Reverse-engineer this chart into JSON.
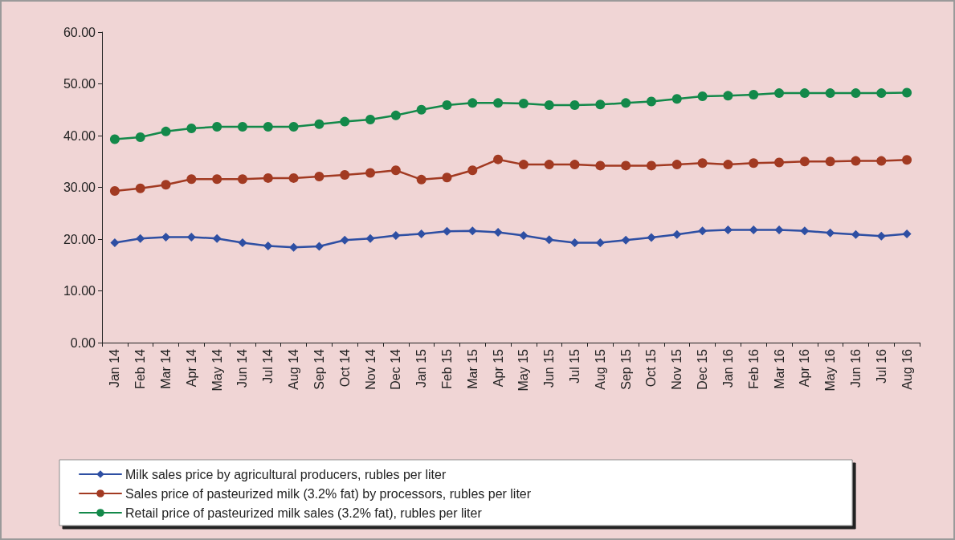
{
  "chart_data": {
    "type": "line",
    "categories": [
      "Jan 14",
      "Feb 14",
      "Mar 14",
      "Apr 14",
      "May 14",
      "Jun 14",
      "Jul 14",
      "Aug 14",
      "Sep 14",
      "Oct 14",
      "Nov 14",
      "Dec 14",
      "Jan 15",
      "Feb 15",
      "Mar 15",
      "Apr 15",
      "May 15",
      "Jun 15",
      "Jul 15",
      "Aug 15",
      "Sep 15",
      "Oct 15",
      "Nov 15",
      "Dec 15",
      "Jan 16",
      "Feb 16",
      "Mar 16",
      "Apr 16",
      "May 16",
      "Jun 16",
      "Jul 16",
      "Aug 16"
    ],
    "ylim": [
      0,
      60
    ],
    "yticks": [
      {
        "value": 0,
        "label": "0.00"
      },
      {
        "value": 10,
        "label": "10.00"
      },
      {
        "value": 20,
        "label": "20.00"
      },
      {
        "value": 30,
        "label": "30.00"
      },
      {
        "value": 40,
        "label": "40.00"
      },
      {
        "value": 50,
        "label": "50.00"
      },
      {
        "value": 60,
        "label": "60.00"
      }
    ],
    "grid": false,
    "legend": "bottom",
    "line_style": "solid",
    "series": [
      {
        "name": "Milk sales price by agricultural producers, rubles per liter",
        "color": "#2e4fa3",
        "marker": "diamond",
        "values": [
          19.3,
          20.1,
          20.4,
          20.4,
          20.1,
          19.3,
          18.7,
          18.4,
          18.6,
          19.8,
          20.1,
          20.7,
          21.0,
          21.5,
          21.6,
          21.3,
          20.7,
          19.9,
          19.3,
          19.3,
          19.8,
          20.3,
          20.9,
          21.6,
          21.8,
          21.8,
          21.8,
          21.6,
          21.2,
          20.9,
          20.6,
          21.0
        ]
      },
      {
        "name": "Sales price of pasteurized milk (3.2% fat) by processors, rubles per liter",
        "color": "#a23a22",
        "marker": "circle",
        "values": [
          29.3,
          29.8,
          30.5,
          31.6,
          31.6,
          31.6,
          31.8,
          31.8,
          32.1,
          32.4,
          32.8,
          33.3,
          31.5,
          31.9,
          33.3,
          35.4,
          34.4,
          34.4,
          34.4,
          34.2,
          34.2,
          34.2,
          34.4,
          34.7,
          34.4,
          34.7,
          34.8,
          35.0,
          35.0,
          35.1,
          35.1,
          35.3
        ]
      },
      {
        "name": "Retail price of pasteurized milk sales (3.2% fat), rubles per liter",
        "color": "#13894a",
        "marker": "circle",
        "values": [
          39.3,
          39.7,
          40.8,
          41.4,
          41.7,
          41.7,
          41.7,
          41.7,
          42.2,
          42.7,
          43.1,
          43.9,
          45.0,
          45.9,
          46.3,
          46.3,
          46.2,
          45.9,
          45.9,
          46.0,
          46.3,
          46.6,
          47.1,
          47.6,
          47.7,
          47.9,
          48.2,
          48.2,
          48.2,
          48.2,
          48.2,
          48.3
        ]
      }
    ]
  }
}
